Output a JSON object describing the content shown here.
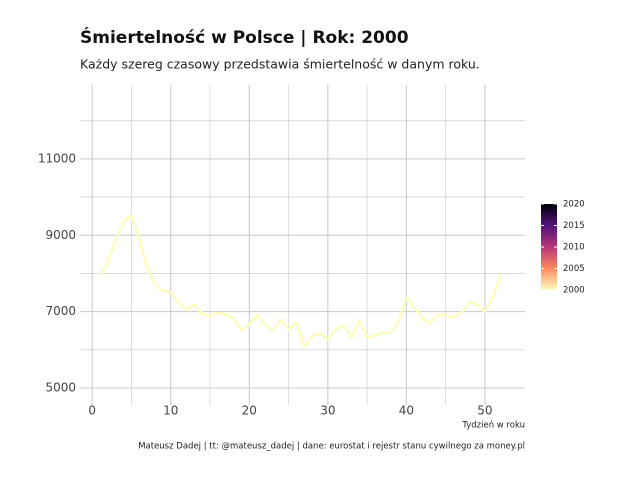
{
  "chart_data": {
    "type": "line",
    "title": "Śmiertelność w Polsce | Rok: 2000",
    "subtitle": "Każdy szereg czasowy przedstawia śmiertelność w danym roku.",
    "x_label": "Tydzień w roku",
    "caption": "Mateusz Dadej | tt: @mateusz_dadej | dane: eurostat i rejestr stanu cywilnego za money.pl",
    "x": [
      1,
      2,
      3,
      4,
      5,
      6,
      7,
      8,
      9,
      10,
      11,
      12,
      13,
      14,
      15,
      16,
      17,
      18,
      19,
      20,
      21,
      22,
      23,
      24,
      25,
      26,
      27,
      28,
      29,
      30,
      31,
      32,
      33,
      34,
      35,
      36,
      37,
      38,
      39,
      40,
      41,
      42,
      43,
      44,
      45,
      46,
      47,
      48,
      49,
      50,
      51,
      52
    ],
    "series": [
      {
        "color": "#fcfdbf",
        "values": [
          7940,
          8300,
          8880,
          9350,
          9510,
          8880,
          8150,
          7700,
          7550,
          7500,
          7240,
          7050,
          7180,
          6950,
          6870,
          6970,
          6920,
          6840,
          6500,
          6660,
          6900,
          6660,
          6500,
          6790,
          6530,
          6710,
          6080,
          6370,
          6420,
          6270,
          6530,
          6630,
          6320,
          6760,
          6320,
          6370,
          6450,
          6450,
          6740,
          7370,
          7110,
          6840,
          6690,
          6920,
          6900,
          6840,
          6970,
          7240,
          7180,
          7000,
          7370,
          7970
        ]
      }
    ],
    "xlim": [
      -1.55,
      55.1
    ],
    "ylim": [
      4555,
      12935
    ],
    "xticks": [
      0,
      10,
      20,
      30,
      40,
      50
    ],
    "yticks": [
      5000,
      7000,
      9000,
      11000
    ],
    "x_minor_grid": [
      5,
      15,
      25,
      35,
      45
    ],
    "y_minor_grid": [
      6000,
      8000,
      10000,
      12000
    ],
    "grid": true,
    "colorbar": {
      "lim": [
        2000,
        2020
      ],
      "ticks": [
        2000,
        2005,
        2010,
        2015,
        2020
      ],
      "colors": [
        "#fcfdbf",
        "#fc8961",
        "#b73779",
        "#51127c",
        "#000004"
      ]
    }
  }
}
